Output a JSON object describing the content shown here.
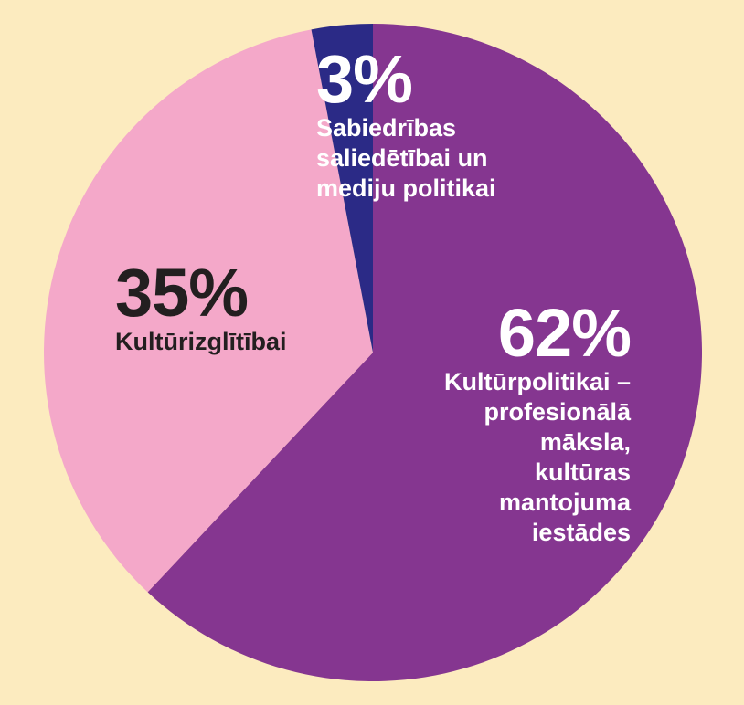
{
  "chart_data": {
    "type": "pie",
    "slices": [
      {
        "value": 62,
        "pct_label": "62%",
        "label_lines": [
          "Kultūrpolitikai –",
          "profesionālā māksla,",
          "kultūras mantojuma",
          "iestādes"
        ],
        "color": "#853690"
      },
      {
        "value": 35,
        "pct_label": "35%",
        "label_lines": [
          "Kultūrizglītībai"
        ],
        "color": "#f4a8c9"
      },
      {
        "value": 3,
        "pct_label": "3%",
        "label_lines": [
          "Sabiedrības",
          "saliedētībai un",
          "mediju politikai"
        ],
        "color": "#2b2a86"
      }
    ]
  },
  "colors": {
    "background": "#fcebbf",
    "label_dark": "#231f20",
    "label_light": "#ffffff"
  }
}
